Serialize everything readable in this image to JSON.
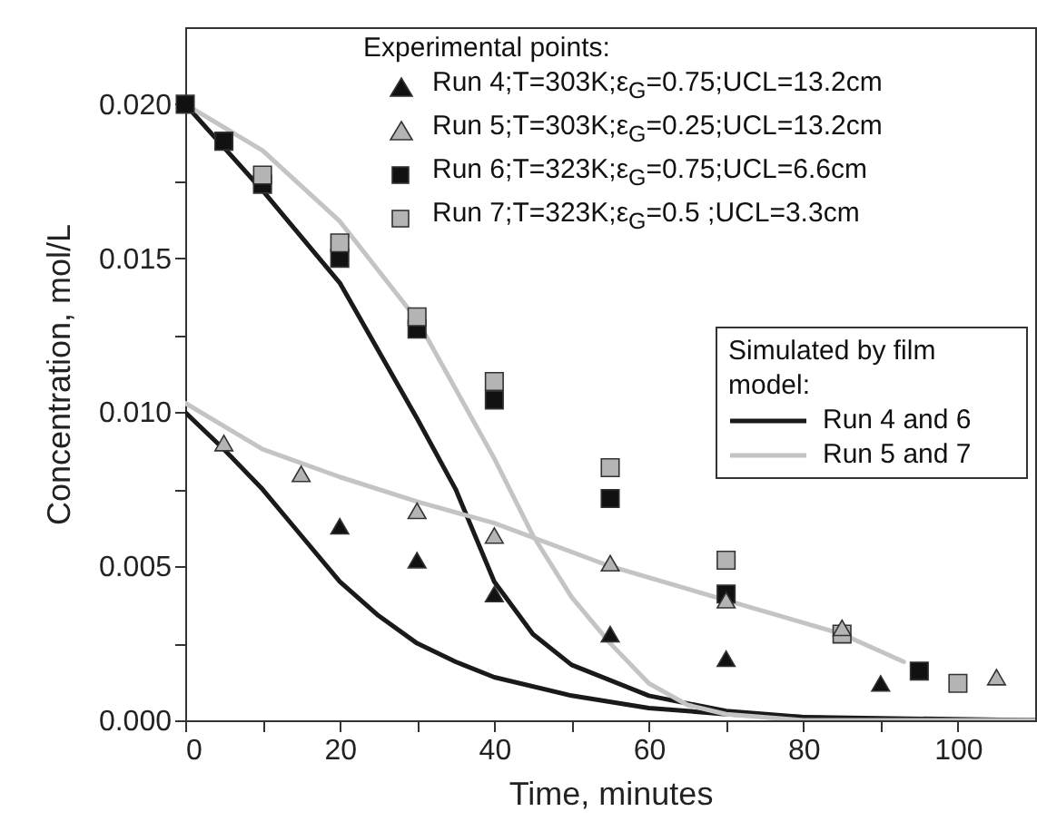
{
  "chart_data": {
    "type": "scatter",
    "xlabel": "Time, minutes",
    "ylabel": "Concentration, mol/L",
    "legend_title": "Experimental points:",
    "annotations": [
      "Simulated by film model:"
    ],
    "xlim": [
      0,
      110
    ],
    "xticks": [
      0,
      {
        "value": 10,
        "label": null
      },
      20,
      {
        "value": 30,
        "label": null
      },
      40,
      {
        "value": 50,
        "label": null
      },
      60,
      {
        "value": 70,
        "label": null
      },
      80,
      {
        "value": 90,
        "label": null
      },
      100
    ],
    "ylim": [
      0,
      0.0225
    ],
    "yticks": [
      {
        "value": 0,
        "label": "0.000"
      },
      {
        "value": 0.0025,
        "label": null
      },
      {
        "value": 0.005,
        "label": "0.005"
      },
      {
        "value": 0.0075,
        "label": null
      },
      {
        "value": 0.01,
        "label": "0.010"
      },
      {
        "value": 0.0125,
        "label": null
      },
      {
        "value": 0.015,
        "label": "0.015"
      },
      {
        "value": 0.0175,
        "label": null
      },
      {
        "value": 0.02,
        "label": "0.020"
      }
    ],
    "grid": false,
    "legend": "top right",
    "series": [
      {
        "type": "line",
        "name": "Run 4 and 6",
        "color": "#1a1a1a",
        "line_style": "solid",
        "x": [
          0,
          5,
          10,
          15,
          20,
          25,
          30,
          35,
          40,
          50,
          60,
          70,
          80,
          90,
          110
        ],
        "values": [
          0.01,
          0.0088,
          0.0075,
          0.006,
          0.0045,
          0.0034,
          0.0025,
          0.0019,
          0.0014,
          0.0008,
          0.0004,
          0.0002,
          0.0001,
          0,
          0
        ]
      },
      {
        "type": "line",
        "color": "#1a1a1a",
        "line_style": "solid",
        "x": [
          0,
          10,
          20,
          30,
          35,
          40,
          45,
          50,
          60,
          70,
          80,
          110
        ],
        "values": [
          0.02,
          0.0172,
          0.0142,
          0.0098,
          0.0075,
          0.0045,
          0.0028,
          0.0018,
          0.0008,
          0.0003,
          0.0001,
          0
        ]
      },
      {
        "type": "line",
        "name": "Run 5 and 7",
        "color": "#c4c4c4",
        "line_style": "solid",
        "x": [
          0,
          10,
          20,
          30,
          40,
          55,
          70,
          85,
          93
        ],
        "values": [
          0.0103,
          0.0088,
          0.0079,
          0.0071,
          0.0064,
          0.005,
          0.0039,
          0.0028,
          0.0019
        ]
      },
      {
        "type": "line",
        "color": "#c4c4c4",
        "line_style": "solid",
        "x": [
          0,
          10,
          20,
          30,
          40,
          45,
          50,
          55,
          60,
          65,
          70,
          80,
          110
        ],
        "values": [
          0.02,
          0.0185,
          0.0162,
          0.013,
          0.0085,
          0.006,
          0.004,
          0.0025,
          0.0012,
          0.0005,
          0.0002,
          0,
          0
        ]
      },
      {
        "name": "Run 4;T=303K;ε$_{G}$=0.75;UCL=13.2cm",
        "color": "#111111",
        "marker": "triangle",
        "x": [
          20,
          30,
          40,
          55,
          70,
          90
        ],
        "values": [
          0.0063,
          0.0052,
          0.0041,
          0.0028,
          0.002,
          0.0012
        ]
      },
      {
        "name": "Run 5;T=303K;ε$_{G}$=0.25;UCL=13.2cm",
        "color": "#b4b4b4",
        "marker": "triangle",
        "x": [
          5,
          15,
          30,
          40,
          55,
          70,
          85,
          105
        ],
        "values": [
          0.009,
          0.008,
          0.0068,
          0.006,
          0.0051,
          0.0039,
          0.003,
          0.0014
        ]
      },
      {
        "name": "Run 6;T=323K;ε$_{G}$=0.75;UCL=6.6cm",
        "color": "#111111",
        "marker": "square",
        "x": [
          0,
          5,
          10,
          20,
          30,
          40,
          55,
          70,
          85,
          95
        ],
        "values": [
          0.02,
          0.0188,
          0.0174,
          0.015,
          0.0127,
          0.0104,
          0.0072,
          0.0041,
          null,
          0.0016
        ]
      },
      {
        "name": "Run 7;T=323K;ε$_{G}$=0.5 ;UCL=3.3cm",
        "color": "#b4b4b4",
        "marker": "square",
        "x": [
          10,
          20,
          30,
          40,
          55,
          70,
          85,
          100
        ],
        "values": [
          0.0177,
          0.0155,
          0.0131,
          0.011,
          0.0082,
          0.0052,
          0.0028,
          0.0012
        ]
      }
    ]
  }
}
